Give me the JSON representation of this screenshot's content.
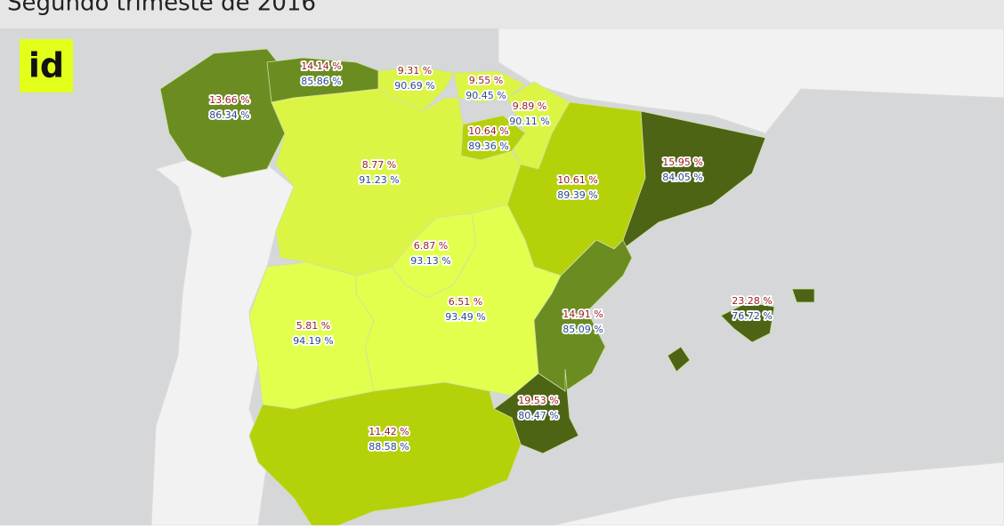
{
  "header": {
    "title": "Segundo trimeste de 2016"
  },
  "logo": "id",
  "regions": [
    {
      "labels": [
        "13.66 %",
        "86.34 %"
      ],
      "color": "#6b8c21"
    },
    {
      "labels": [
        "14.14 %",
        "85.86 %"
      ],
      "color": "#6b8c21"
    },
    {
      "labels": [
        "9.31 %",
        "90.69 %"
      ],
      "color": "#dcf545"
    },
    {
      "labels": [
        "9.55 %",
        "90.45 %"
      ],
      "color": "#dcf545"
    },
    {
      "labels": [
        "9.89 %",
        "90.11 %"
      ],
      "color": "#dcf545"
    },
    {
      "labels": [
        "10.64 %",
        "89.36 %"
      ],
      "color": "#b5d10a"
    },
    {
      "labels": [
        "8.77 %",
        "91.23 %"
      ],
      "color": "#dcf545"
    },
    {
      "labels": [
        "10.61 %",
        "89.39 %"
      ],
      "color": "#b5d10a"
    },
    {
      "labels": [
        "15.95 %",
        "84.05 %"
      ],
      "color": "#4d6414"
    },
    {
      "labels": [
        "6.87 %",
        "93.13 %"
      ],
      "color": "#e2ff4d"
    },
    {
      "labels": [
        "6.51 %",
        "93.49 %"
      ],
      "color": "#e2ff4d"
    },
    {
      "labels": [
        "5.81 %",
        "94.19 %"
      ],
      "color": "#e2ff4d"
    },
    {
      "labels": [
        "14.91 %",
        "85.09 %"
      ],
      "color": "#6b8c21"
    },
    {
      "labels": [
        "23.28 %",
        "76.72 %"
      ],
      "color": "#4d6414"
    },
    {
      "labels": [
        "19.53 %",
        "80.47 %"
      ],
      "color": "#4d6414"
    },
    {
      "labels": [
        "11.42 %",
        "88.58 %"
      ],
      "color": "#b5d10a"
    }
  ]
}
